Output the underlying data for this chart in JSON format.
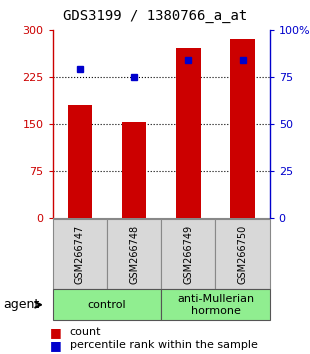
{
  "title": "GDS3199 / 1380766_a_at",
  "samples": [
    "GSM266747",
    "GSM266748",
    "GSM266749",
    "GSM266750"
  ],
  "count_values": [
    180,
    153,
    272,
    285
  ],
  "percentile_values": [
    79,
    75,
    84,
    84
  ],
  "groups": [
    {
      "label": "control",
      "span": [
        0,
        2
      ],
      "color": "#90ee90"
    },
    {
      "label": "anti-Mullerian\nhormone",
      "span": [
        2,
        4
      ],
      "color": "#90ee90"
    }
  ],
  "group_label": "agent",
  "bar_color": "#cc0000",
  "dot_color": "#0000cc",
  "ylim_left": [
    0,
    300
  ],
  "ylim_right": [
    0,
    100
  ],
  "yticks_left": [
    0,
    75,
    150,
    225,
    300
  ],
  "yticks_right": [
    0,
    25,
    50,
    75,
    100
  ],
  "ytick_labels_left": [
    "0",
    "75",
    "150",
    "225",
    "300"
  ],
  "ytick_labels_right": [
    "0",
    "25",
    "50",
    "75",
    "100%"
  ],
  "left_axis_color": "#cc0000",
  "right_axis_color": "#0000cc",
  "bg_color": "#ffffff",
  "legend_count_label": "count",
  "legend_pct_label": "percentile rank within the sample",
  "bar_width": 0.45,
  "dot_size": 5,
  "title_fontsize": 10,
  "tick_fontsize": 8,
  "sample_fontsize": 7,
  "group_fontsize": 8,
  "legend_fontsize": 8
}
